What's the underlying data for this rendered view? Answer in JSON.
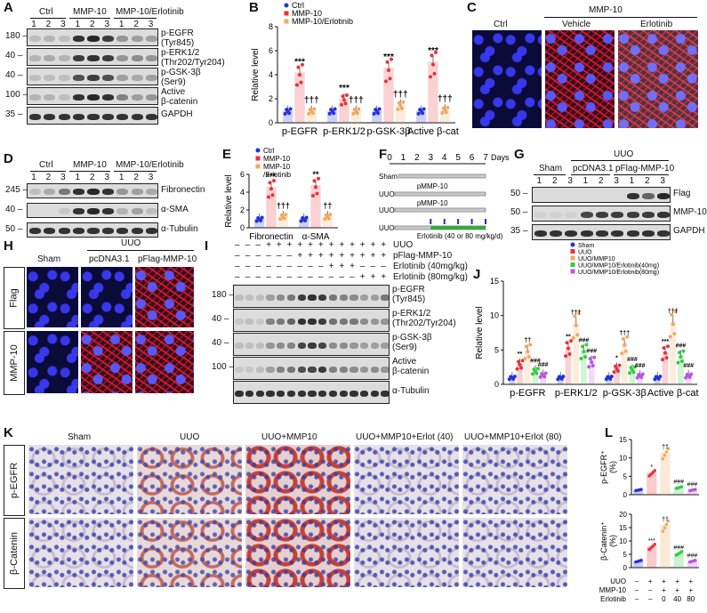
{
  "panels": {
    "A": {
      "label": "A",
      "groups": [
        "Ctrl",
        "MMP-10",
        "MMP-10/Erlotinib"
      ],
      "lanes": [
        "1",
        "2",
        "3",
        "1",
        "2",
        "3",
        "1",
        "2",
        "3"
      ],
      "mw": [
        "180",
        "40",
        "40",
        "100",
        "35"
      ],
      "rows": [
        "p-EGFR\n(Tyr845)",
        "p-ERK1/2\n(Thr202/Tyr204)",
        "p-GSK-3β\n(Ser9)",
        "Active\nβ-catenin",
        "GAPDH"
      ]
    },
    "B": {
      "label": "B",
      "legend": [
        "Ctrl",
        "MMP-10",
        "MMP-10/Erlotinib"
      ],
      "ylabel": "Relative level",
      "categories": [
        "p-EGFR",
        "p-ERK1/2",
        "p-GSK-3β",
        "Active β-cat"
      ],
      "yticks": [
        "0",
        "2",
        "4",
        "6",
        "8"
      ],
      "sig_mmp": [
        "***",
        "***",
        "***",
        "***"
      ],
      "sig_erl": [
        "†††",
        "†††",
        "†††",
        "†††"
      ]
    },
    "C": {
      "label": "C",
      "group_header": "MMP-10",
      "images": [
        "Ctrl",
        "Vehicle",
        "Erlotinib"
      ]
    },
    "D": {
      "label": "D",
      "groups": [
        "Ctrl",
        "MMP-10",
        "MMP-10/Erlotinib"
      ],
      "lanes": [
        "1",
        "2",
        "3",
        "1",
        "2",
        "3",
        "1",
        "2",
        "3"
      ],
      "mw": [
        "245",
        "40",
        "50"
      ],
      "rows": [
        "Fibronectin",
        "α-SMA",
        "α-Tubulin"
      ]
    },
    "E": {
      "label": "E",
      "legend": [
        "Ctrl",
        "MMP-10",
        "MMP-10\n/Erlotinib"
      ],
      "ylabel": "Relative level",
      "categories": [
        "Fibronectin",
        "α-SMA"
      ],
      "yticks": [
        "0",
        "2",
        "4",
        "6"
      ],
      "sig_mmp": [
        "***",
        "**"
      ],
      "sig_erl": [
        "†††",
        "††"
      ]
    },
    "F": {
      "label": "F",
      "days": [
        "0",
        "1",
        "2",
        "3",
        "4",
        "5",
        "6",
        "7"
      ],
      "days_label": "Days",
      "rows": [
        "Sham",
        "UUO",
        "UUO",
        "UUO"
      ],
      "annotations": [
        "pMMP-10",
        "pMMP-10",
        "Erlotinib (40 or 80 mg/kg/d)"
      ]
    },
    "G": {
      "label": "G",
      "group_header": "UUO",
      "groups": [
        "Sham",
        "pcDNA3.1",
        "pFlag-MMP-10"
      ],
      "lanes": [
        "1",
        "2",
        "3",
        "1",
        "2",
        "3",
        "1",
        "2",
        "3"
      ],
      "mw": [
        "50",
        "50",
        "35"
      ],
      "rows": [
        "Flag",
        "MMP-10",
        "GAPDH"
      ]
    },
    "H": {
      "label": "H",
      "group_header": "UUO",
      "columns": [
        "Sham",
        "pcDNA3.1",
        "pFlag-MMP-10"
      ],
      "rows": [
        "Flag",
        "MMP-10"
      ]
    },
    "I": {
      "label": "I",
      "conditions": [
        "UUO",
        "pFlag-MMP-10",
        "Erlotinib (40mg/kg)",
        "Erlotinib (80mg/kg)"
      ],
      "signs": [
        [
          "–",
          "–",
          "–",
          "+",
          "+",
          "+",
          "+",
          "+",
          "+",
          "+",
          "+",
          "+",
          "+",
          "+",
          "+"
        ],
        [
          "–",
          "–",
          "–",
          "–",
          "–",
          "–",
          "+",
          "+",
          "+",
          "+",
          "+",
          "+",
          "+",
          "+",
          "+"
        ],
        [
          "–",
          "–",
          "–",
          "–",
          "–",
          "–",
          "–",
          "–",
          "–",
          "+",
          "+",
          "+",
          "–",
          "–",
          "–"
        ],
        [
          "–",
          "–",
          "–",
          "–",
          "–",
          "–",
          "–",
          "–",
          "–",
          "–",
          "–",
          "–",
          "+",
          "+",
          "+"
        ]
      ],
      "mw": [
        "180",
        "40",
        "40",
        "100"
      ],
      "rows": [
        "p-EGFR\n(Tyr845)",
        "p-ERK1/2\n(Thr202/Tyr204)",
        "p-GSK-3β\n(Ser9)",
        "Active\nβ-catenin",
        "α-Tubulin"
      ]
    },
    "J": {
      "label": "J",
      "legend": [
        "Sham",
        "UUO",
        "UUO/MMP10",
        "UUO/MMP10/Erlotinib(40mg)",
        "UUO/MMP10/Erlotinib(80mg)"
      ],
      "ylabel": "Relative level",
      "categories": [
        "p-EGFR",
        "p-ERK1/2",
        "p-GSK-3β",
        "Active β-cat"
      ],
      "yticks": [
        "0",
        "5",
        "10",
        "15"
      ],
      "sig": [
        [
          "**",
          "††",
          "###",
          "###"
        ],
        [
          "**",
          "†††",
          "###",
          "###"
        ],
        [
          "*",
          "†††",
          "###",
          "###"
        ],
        [
          "***",
          "†††",
          "###",
          "###"
        ]
      ]
    },
    "K": {
      "label": "K",
      "columns": [
        "Sham",
        "UUO",
        "UUO+MMP10",
        "UUO+MMP10+Erlot (40)",
        "UUO+MMP10+Erlot (80)"
      ],
      "rows": [
        "p-EGFR",
        "β-Catenin"
      ]
    },
    "L": {
      "label": "L",
      "top_ylabel": "p-EGFR⁺\n(%)",
      "top_yticks": [
        "0",
        "5",
        "10",
        "15"
      ],
      "bottom_ylabel": "β-Catenin⁺\n(%)",
      "bottom_yticks": [
        "0",
        "5",
        "10",
        "15",
        "20"
      ],
      "top_sig": [
        "*",
        "††",
        "###",
        "###"
      ],
      "bottom_sig": [
        "***",
        "††",
        "###",
        "###"
      ],
      "conditions": [
        "UUO",
        "MMP-10",
        "Erlotinib"
      ],
      "signs": [
        [
          "–",
          "+",
          "+",
          "+",
          "+"
        ],
        [
          "–",
          "–",
          "+",
          "+",
          "+"
        ],
        [
          "–",
          "–",
          "0",
          "40",
          "80"
        ]
      ]
    }
  },
  "colors": {
    "ctrl": "#2233dd",
    "mmp": "#e8323a",
    "erl": "#f0a860",
    "sham": "#2233dd",
    "uuo": "#e8323a",
    "uuo_mmp": "#f0a860",
    "erl40": "#33cc44",
    "erl80": "#bb55dd"
  },
  "chart_data": [
    {
      "type": "bar",
      "panel": "B",
      "categories": [
        "p-EGFR",
        "p-ERK1/2",
        "p-GSK-3β",
        "Active β-cat"
      ],
      "series": [
        {
          "name": "Ctrl",
          "values": [
            1.0,
            1.0,
            1.0,
            1.0
          ]
        },
        {
          "name": "MMP-10",
          "values": [
            4.2,
            2.0,
            4.6,
            5.1
          ]
        },
        {
          "name": "MMP-10/Erlotinib",
          "values": [
            1.0,
            1.0,
            1.5,
            1.1
          ]
        }
      ],
      "ylabel": "Relative level",
      "ylim": [
        0,
        8
      ]
    },
    {
      "type": "bar",
      "panel": "E",
      "categories": [
        "Fibronectin",
        "α-SMA"
      ],
      "series": [
        {
          "name": "Ctrl",
          "values": [
            1.0,
            1.0
          ]
        },
        {
          "name": "MMP-10",
          "values": [
            4.6,
            4.8
          ]
        },
        {
          "name": "MMP-10\n/Erlotinib",
          "values": [
            1.3,
            1.3
          ]
        }
      ],
      "ylabel": "Relative level",
      "ylim": [
        0,
        6
      ]
    },
    {
      "type": "bar",
      "panel": "J",
      "categories": [
        "p-EGFR",
        "p-ERK1/2",
        "p-GSK-3β",
        "Active β-cat"
      ],
      "series": [
        {
          "name": "Sham",
          "values": [
            1.0,
            1.0,
            1.0,
            1.0
          ]
        },
        {
          "name": "UUO",
          "values": [
            3.0,
            5.5,
            2.4,
            4.8
          ]
        },
        {
          "name": "UUO/MMP10",
          "values": [
            5.0,
            9.0,
            6.0,
            9.2
          ]
        },
        {
          "name": "UUO/MMP10/Erlotinib(40mg)",
          "values": [
            2.0,
            5.0,
            2.2,
            4.2
          ]
        },
        {
          "name": "UUO/MMP10/Erlotinib(80mg)",
          "values": [
            1.4,
            3.4,
            1.3,
            1.3
          ]
        }
      ],
      "ylabel": "Relative level",
      "ylim": [
        0,
        15
      ]
    },
    {
      "type": "bar",
      "panel": "L-top",
      "categories": [
        "1",
        "2",
        "3",
        "4",
        "5"
      ],
      "values": [
        1.3,
        6.0,
        11.5,
        2.0,
        1.3
      ],
      "ylabel": "p-EGFR⁺\n(%)",
      "ylim": [
        0,
        15
      ]
    },
    {
      "type": "bar",
      "panel": "L-bottom",
      "categories": [
        "1",
        "2",
        "3",
        "4",
        "5"
      ],
      "values": [
        2.5,
        8.0,
        16.0,
        5.5,
        2.5
      ],
      "ylabel": "β-Catenin⁺\n(%)",
      "ylim": [
        0,
        20
      ]
    }
  ]
}
